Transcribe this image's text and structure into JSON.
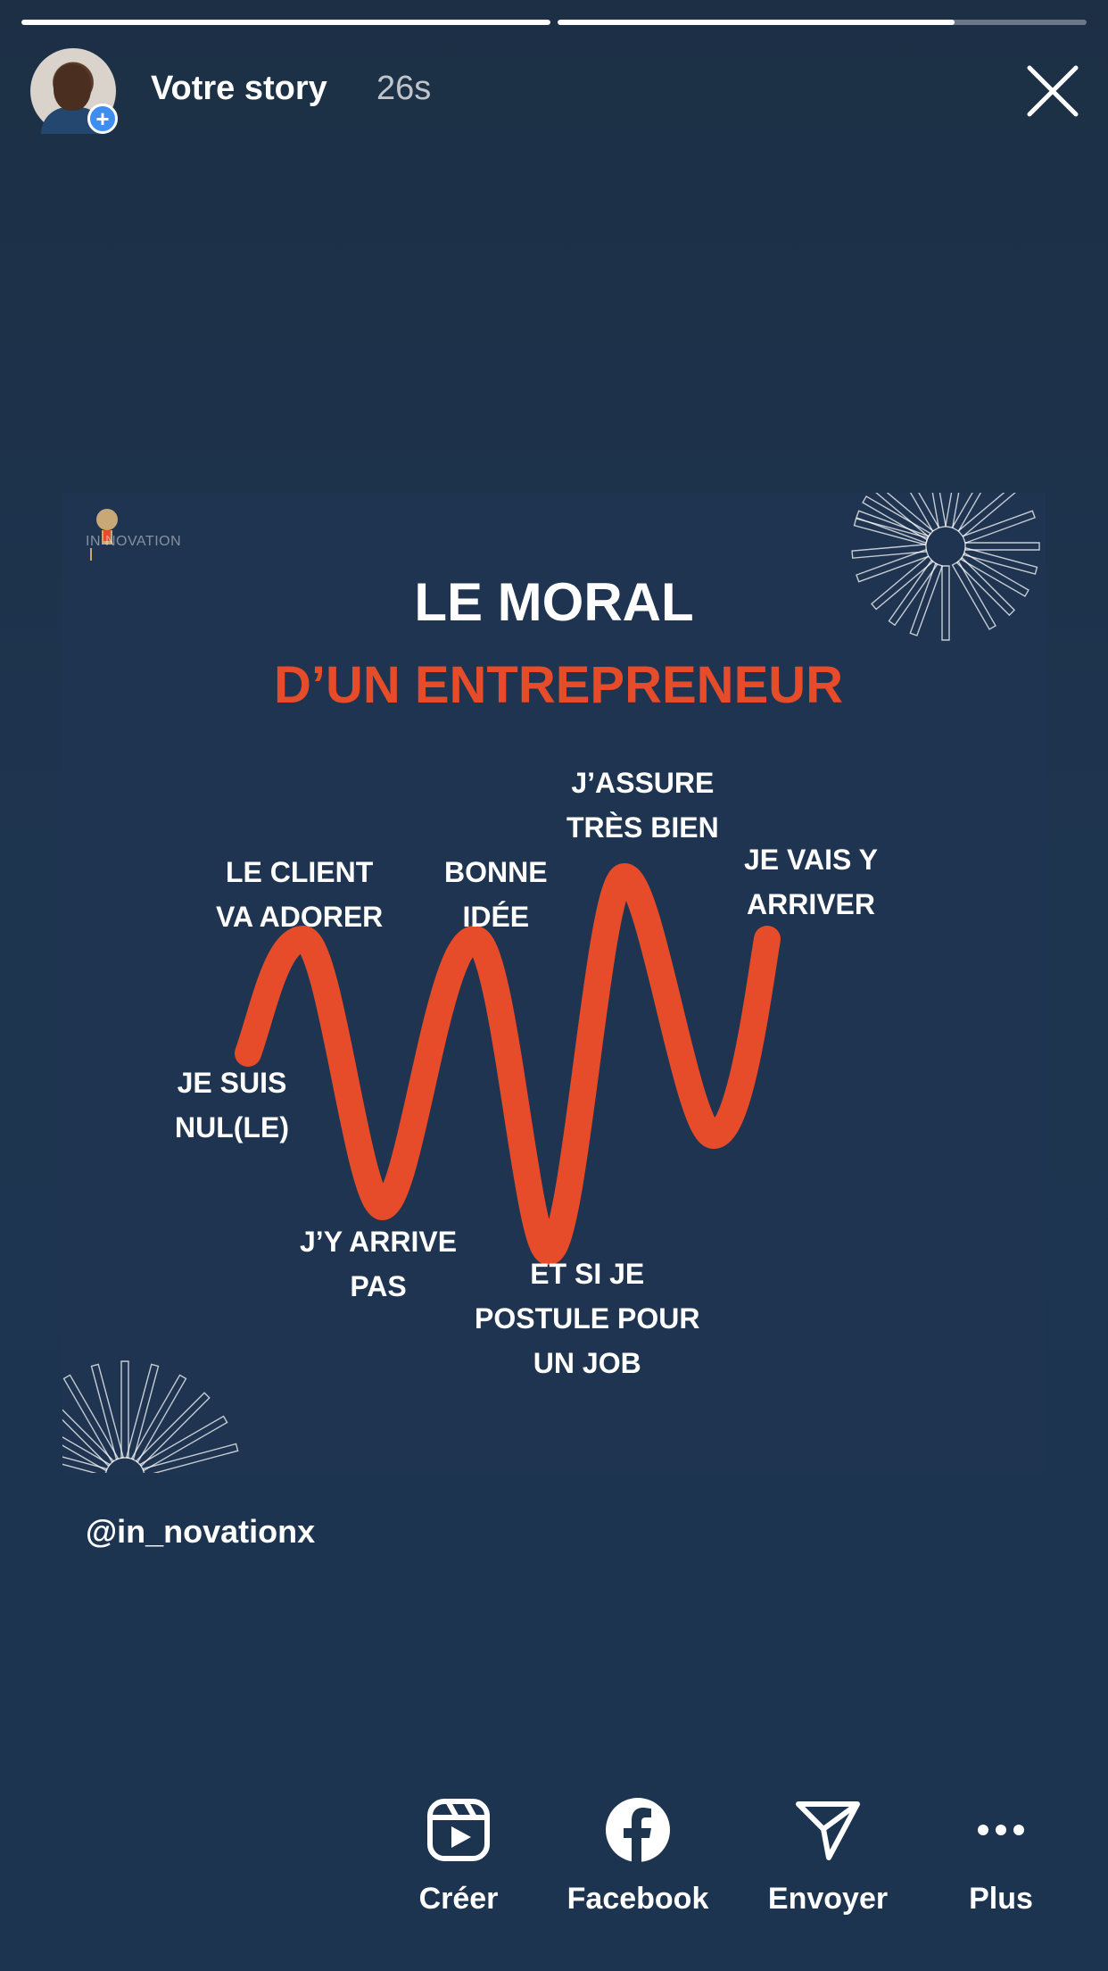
{
  "progress": [
    1.0,
    0.75
  ],
  "header": {
    "title": "Votre story",
    "time": "26s"
  },
  "post": {
    "logo_text": "IN  NOVATION",
    "title_line1": "LE MORAL",
    "title_line2": "D’UN ENTREPRENEUR",
    "accent_color": "#e64b2a",
    "labels": {
      "je_suis_nul": "JE SUIS\nNUL(LE)",
      "le_client": "LE CLIENT\nVA ADORER",
      "jy_arrive_pas": "J’Y ARRIVE\nPAS",
      "bonne_idee": "BONNE\nIDÉE",
      "et_si_je": "ET SI JE\nPOSTULE POUR\nUN JOB",
      "jassure": "J’ASSURE\nTRÈS BIEN",
      "je_vais": "JE VAIS Y\nARRIVER"
    }
  },
  "mention": "@in_novationx",
  "actions": [
    {
      "label": "Créer",
      "icon": "reels-icon"
    },
    {
      "label": "Facebook",
      "icon": "facebook-icon"
    },
    {
      "label": "Envoyer",
      "icon": "send-icon"
    },
    {
      "label": "Plus",
      "icon": "more-icon"
    }
  ]
}
